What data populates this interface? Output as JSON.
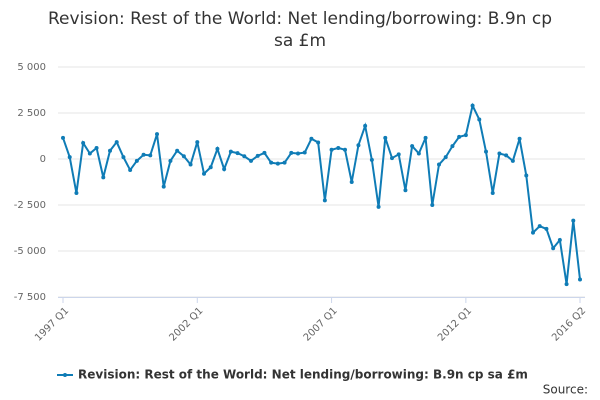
{
  "chart_data": {
    "type": "line",
    "title": "Revision: Rest of the World: Net lending/borrowing: B.9n cp sa £m",
    "categories": [
      "1997 Q1",
      null,
      null,
      null,
      null,
      null,
      null,
      null,
      null,
      null,
      null,
      null,
      null,
      null,
      null,
      null,
      null,
      null,
      null,
      null,
      "2002 Q1",
      null,
      null,
      null,
      null,
      null,
      null,
      null,
      null,
      null,
      null,
      null,
      null,
      null,
      null,
      null,
      null,
      null,
      null,
      null,
      "2007 Q1",
      null,
      null,
      null,
      null,
      null,
      null,
      null,
      null,
      null,
      null,
      null,
      null,
      null,
      null,
      null,
      null,
      null,
      null,
      null,
      "2012 Q1",
      null,
      null,
      null,
      null,
      null,
      null,
      null,
      null,
      null,
      null,
      null,
      null,
      null,
      null,
      null,
      null,
      "2016 Q2"
    ],
    "series": [
      {
        "name": "Revision: Rest of the World: Net lending/borrowing: B.9n cp sa £m",
        "color": "#0f7cb6",
        "values": [
          1150,
          100,
          -1850,
          870,
          300,
          600,
          -1000,
          450,
          920,
          100,
          -600,
          -100,
          230,
          200,
          1350,
          -1500,
          -100,
          450,
          150,
          -300,
          920,
          -800,
          -450,
          550,
          -550,
          400,
          320,
          150,
          -100,
          170,
          330,
          -200,
          -250,
          -200,
          330,
          300,
          350,
          1100,
          900,
          -2250,
          500,
          600,
          500,
          -1250,
          750,
          1800,
          -50,
          -2600,
          1150,
          50,
          250,
          -1700,
          700,
          300,
          1150,
          -2500,
          -300,
          100,
          700,
          1200,
          1300,
          2900,
          2150,
          400,
          -1850,
          300,
          200,
          -100,
          1100,
          -900,
          -4000,
          -3650,
          -3800,
          -4850,
          -4400,
          -6800,
          -3350,
          -6550
        ]
      }
    ],
    "ylim": [
      -7500,
      5000
    ],
    "yticks": [
      {
        "value": -7500,
        "label": "-7 500"
      },
      {
        "value": -5000,
        "label": "-5 000"
      },
      {
        "value": -2500,
        "label": "-2 500"
      },
      0,
      {
        "value": 2500,
        "label": "2 500"
      },
      {
        "value": 5000,
        "label": "5 000"
      }
    ],
    "grid": true,
    "legend": "bottom",
    "source": "Source:"
  }
}
